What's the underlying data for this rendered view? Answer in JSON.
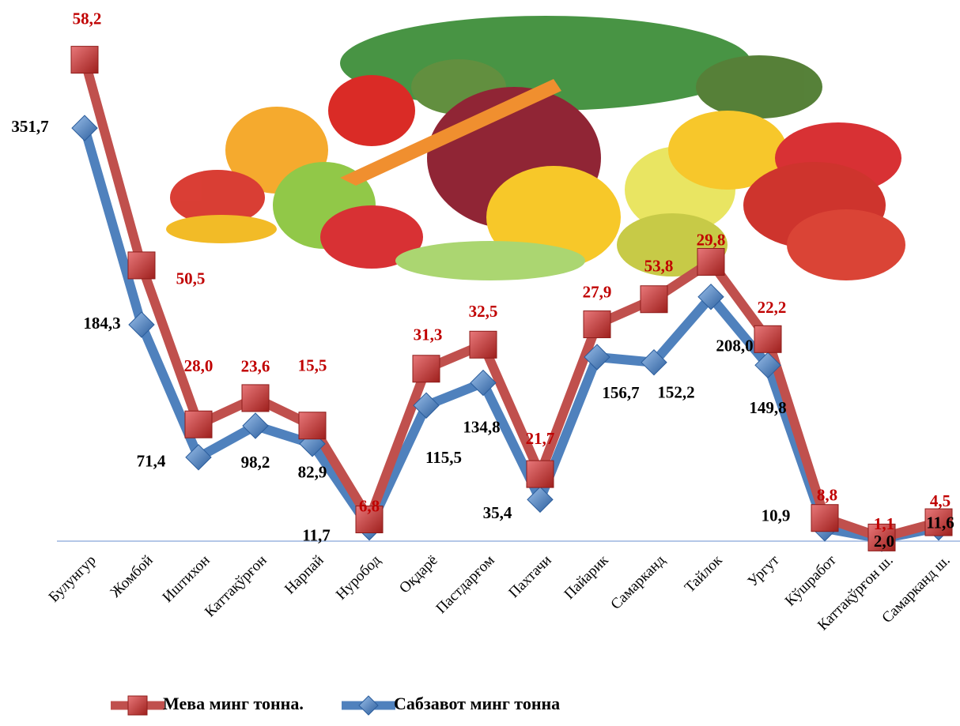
{
  "chart_data": {
    "type": "line",
    "stacked": true,
    "categories": [
      "Булунгур",
      "Жомбой",
      "Иштихон",
      "Каттақўрғон",
      "Нарпай",
      "Нуробод",
      "Оқдарё",
      "Пастдарғом",
      "Пахтачи",
      "Пайарик",
      "Самарканд",
      "Тайлок",
      "Ургут",
      "Кўшработ",
      "Каттақўрғон ш.",
      "Самарканд ш."
    ],
    "series": [
      {
        "name": "Мева минг тонна.",
        "color": "#c0504d",
        "label_color": "#c00000",
        "values": [
          58.2,
          50.5,
          28.0,
          23.6,
          15.5,
          6.8,
          31.3,
          32.5,
          21.7,
          27.9,
          53.8,
          29.8,
          22.2,
          8.8,
          1.1,
          4.5
        ],
        "value_labels": [
          "58,2",
          "50,5",
          "28,0",
          "23,6",
          "15,5",
          "6,8",
          "31,3",
          "32,5",
          "21,7",
          "27,9",
          "53,8",
          "29,8",
          "22,2",
          "8,8",
          "1,1",
          "4,5"
        ]
      },
      {
        "name": "Сабзавот минг тонна",
        "color": "#4f81bd",
        "label_color": "#000000",
        "values": [
          351.7,
          184.3,
          71.4,
          98.2,
          82.9,
          11.7,
          115.5,
          134.8,
          35.4,
          156.7,
          152.2,
          208.0,
          149.8,
          10.9,
          2.0,
          11.6
        ],
        "value_labels": [
          "351,7",
          "184,3",
          "71,4",
          "98,2",
          "82,9",
          "11,7",
          "115,5",
          "134,8",
          "35,4",
          "156,7",
          "152,2",
          "208,0",
          "149,8",
          "10,9",
          "2,0",
          "11,6"
        ]
      }
    ],
    "ylim": [
      0,
      450
    ],
    "legend": "bottom"
  }
}
